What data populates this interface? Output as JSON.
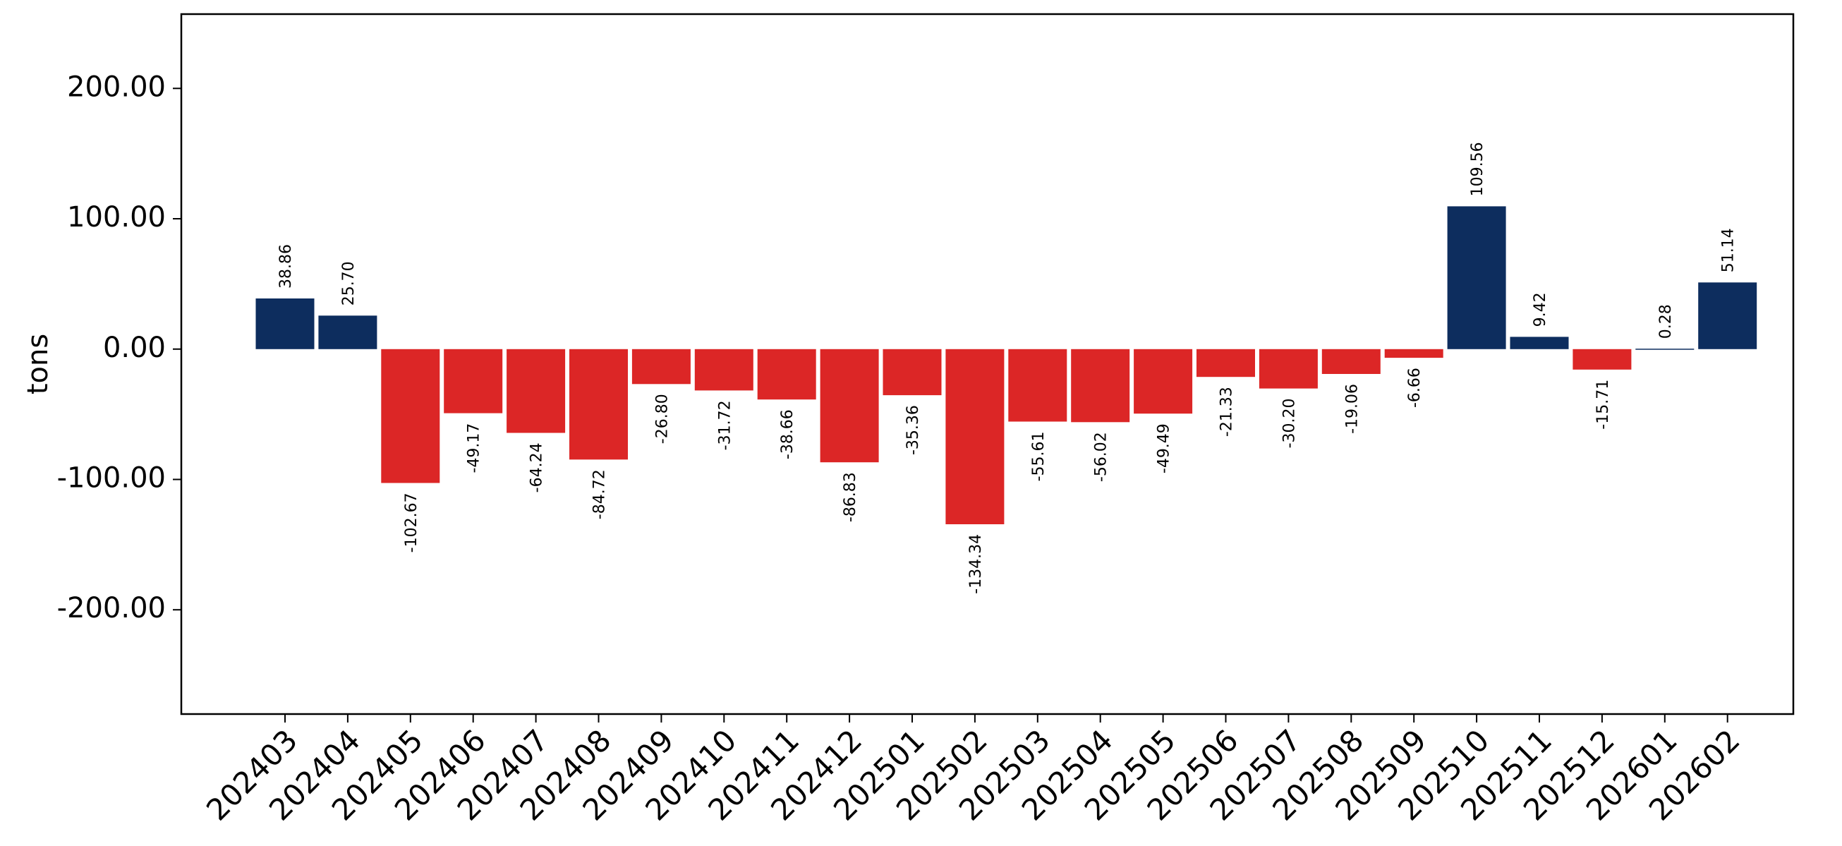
{
  "chart_data": {
    "type": "bar",
    "ylabel": "tons",
    "ylim": [
      -280,
      257
    ],
    "yticks": [
      -200,
      -100,
      0,
      100,
      200
    ],
    "ytick_labels": [
      "-200.00",
      "-100.00",
      "0.00",
      "100.00",
      "200.00"
    ],
    "categories": [
      "202403",
      "202404",
      "202405",
      "202406",
      "202407",
      "202408",
      "202409",
      "202410",
      "202411",
      "202412",
      "202501",
      "202502",
      "202503",
      "202504",
      "202505",
      "202506",
      "202507",
      "202508",
      "202509",
      "202510",
      "202511",
      "202512",
      "202601",
      "202602"
    ],
    "values": [
      38.86,
      25.7,
      -102.67,
      -49.17,
      -64.24,
      -84.72,
      -26.8,
      -31.72,
      -38.66,
      -86.83,
      -35.36,
      -134.34,
      -55.61,
      -56.02,
      -49.49,
      -21.33,
      -30.2,
      -19.06,
      -6.66,
      109.56,
      9.42,
      -15.71,
      0.28,
      51.14
    ],
    "value_labels": [
      "38.86",
      "25.70",
      "-102.67",
      "-49.17",
      "-64.24",
      "-84.72",
      "-26.80",
      "-31.72",
      "-38.66",
      "-86.83",
      "-35.36",
      "-134.34",
      "-55.61",
      "-56.02",
      "-49.49",
      "-21.33",
      "-30.20",
      "-19.06",
      "-6.66",
      "109.56",
      "9.42",
      "-15.71",
      "0.28",
      "51.14"
    ],
    "colors": {
      "positive": "#0d2d5e",
      "negative": "#dc2626"
    },
    "grid": false,
    "legend": "none"
  }
}
